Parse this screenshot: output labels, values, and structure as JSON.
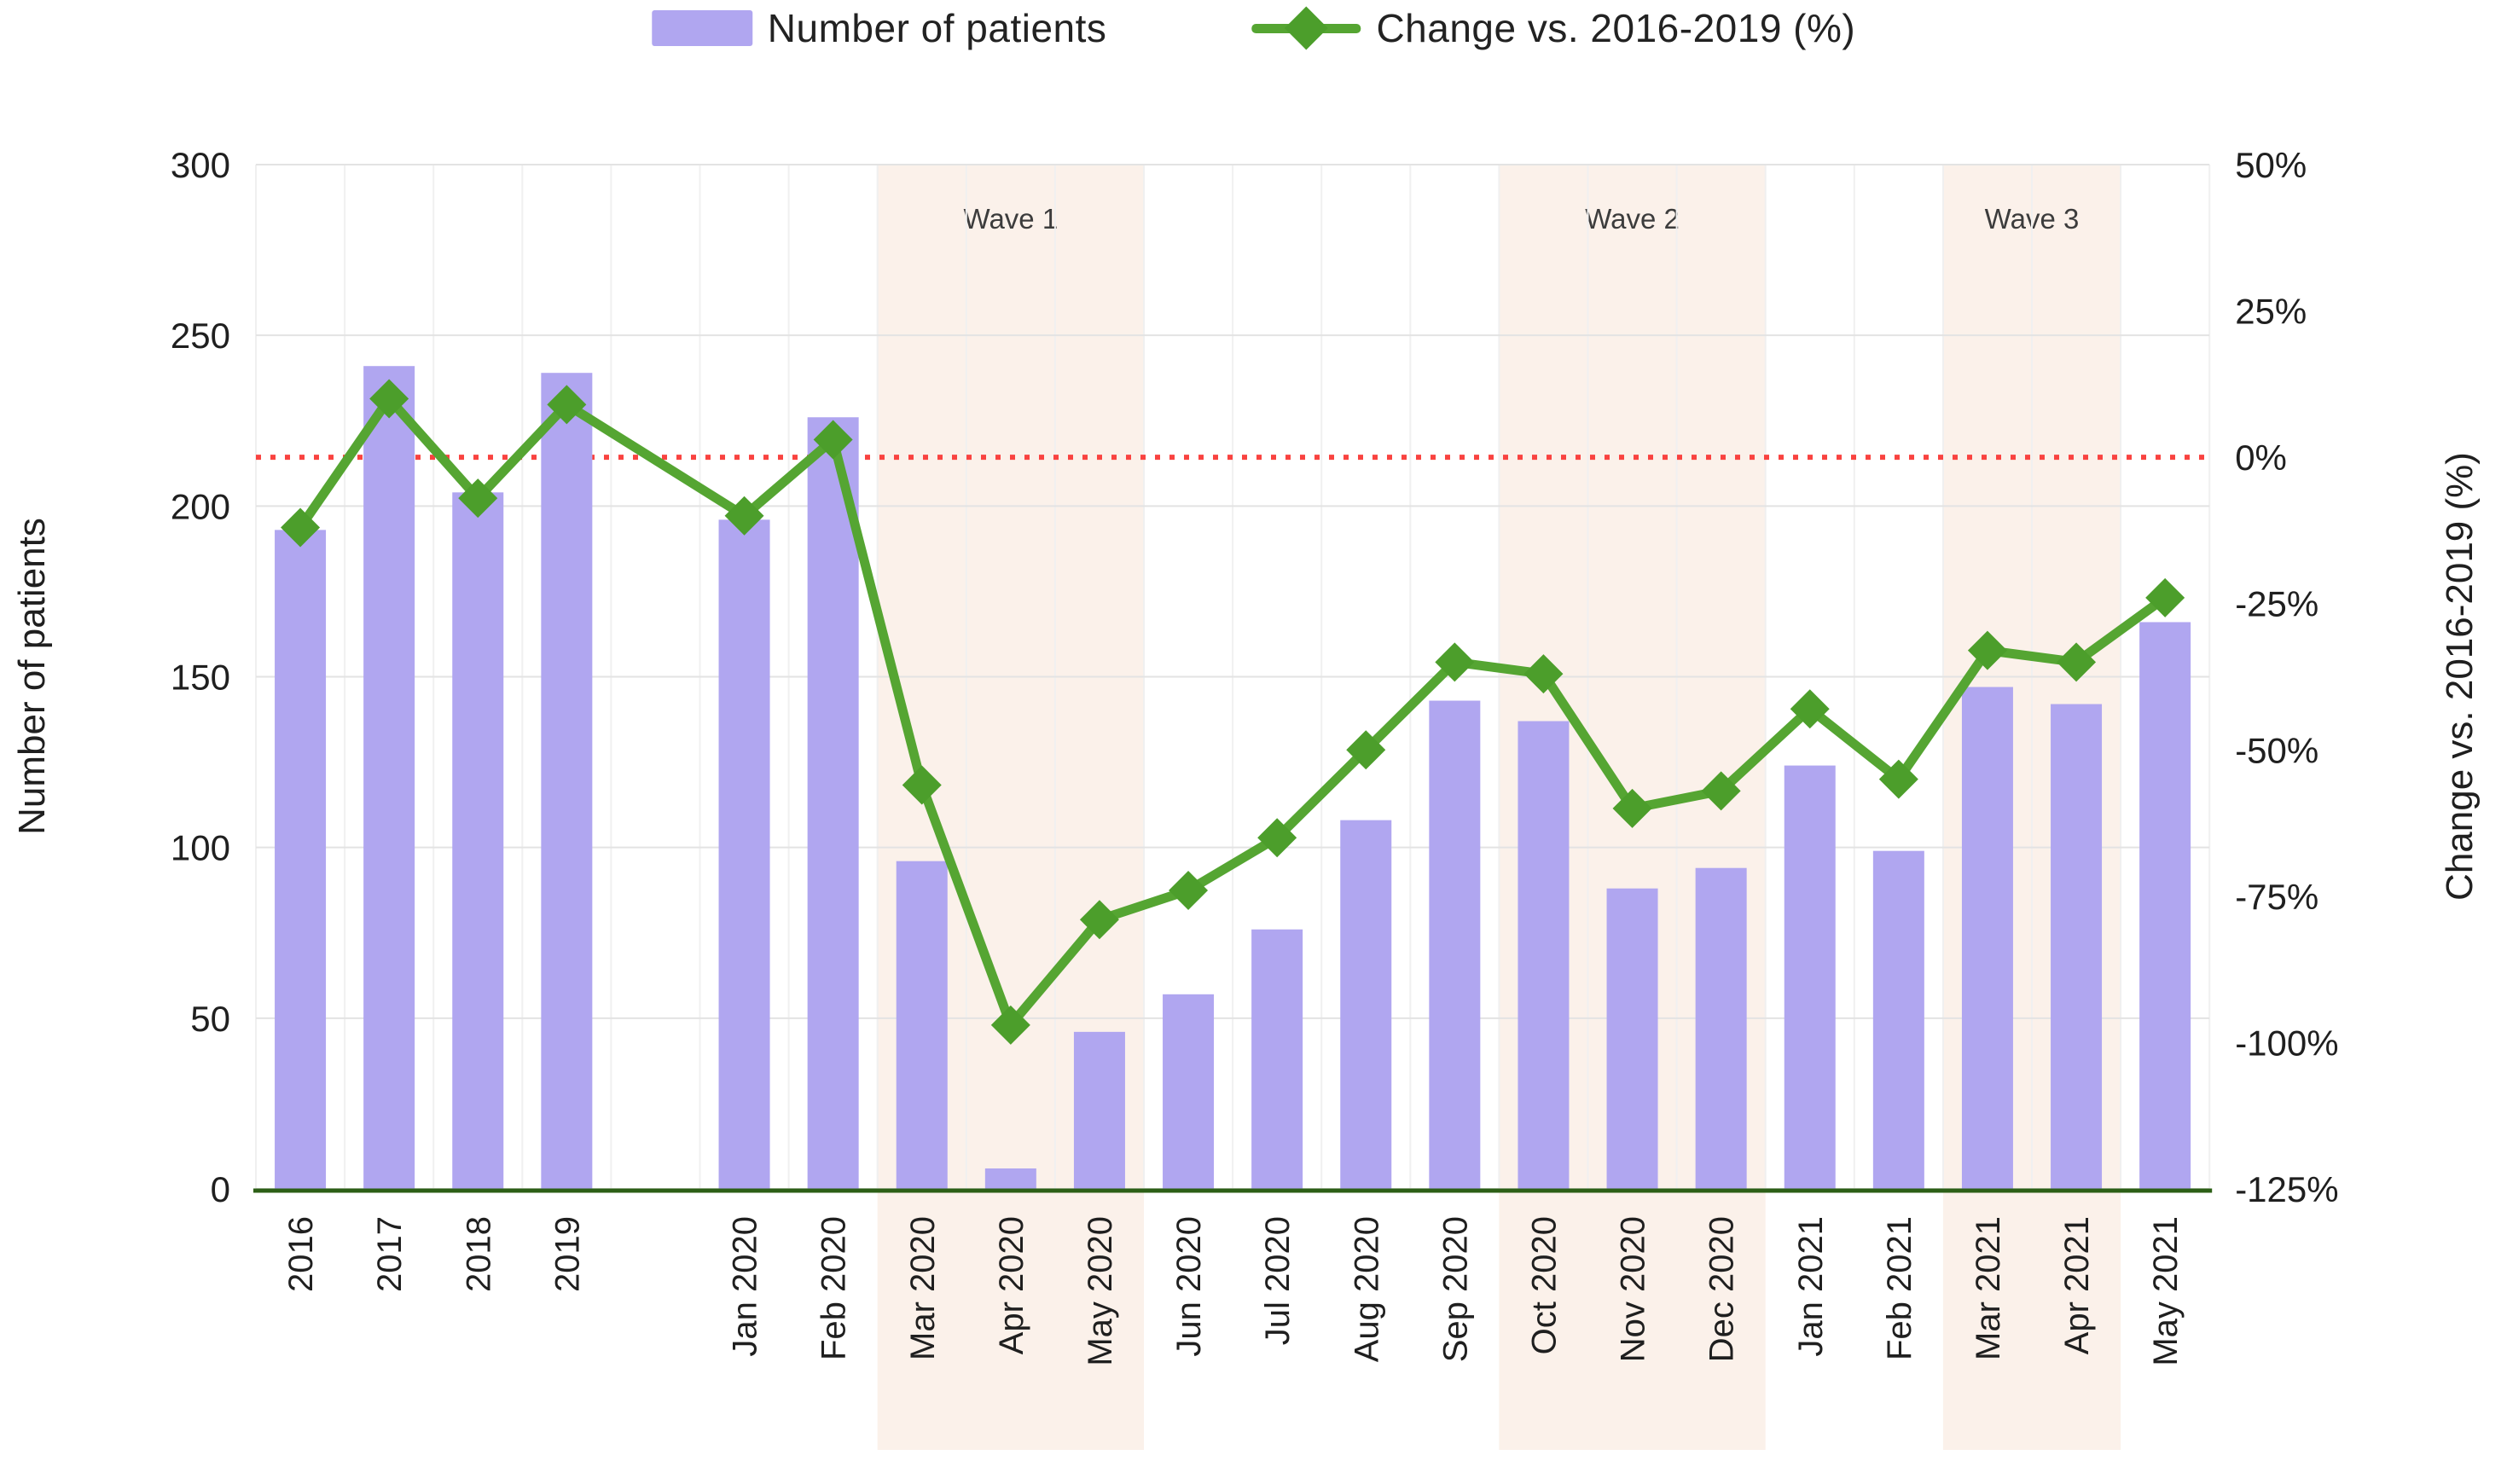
{
  "legend": {
    "bar_label": "Number of patients",
    "line_label": "Change vs. 2016-2019 (%)"
  },
  "colors": {
    "bar": "#b0a6f0",
    "line": "#55a532",
    "marker": "#4c9e2b",
    "band": "#fbf1ea",
    "grid": "#e3e3e3",
    "grid_vertical": "#f0f0f0",
    "reference": "#f94340",
    "axis_line": "#2c5f16",
    "tick_text": "#1f1f1f",
    "wave_text": "#3c3c3c"
  },
  "chart_data": {
    "type": "bar",
    "title": "",
    "categories": [
      "2016",
      "2017",
      "2018",
      "2019",
      "Jan 2020",
      "Feb 2020",
      "Mar 2020",
      "Apr 2020",
      "May 2020",
      "Jun 2020",
      "Jul 2020",
      "Aug 2020",
      "Sep 2020",
      "Oct 2020",
      "Nov 2020",
      "Dec 2020",
      "Jan 2021",
      "Feb 2021",
      "Mar 2021",
      "Apr 2021",
      "May 2021"
    ],
    "gap_after_category": "2019",
    "series": [
      {
        "name": "Number of patients",
        "type": "bar",
        "axis": "left",
        "values": [
          193,
          241,
          204,
          239,
          196,
          226,
          96,
          6,
          46,
          57,
          76,
          108,
          143,
          137,
          88,
          94,
          124,
          99,
          147,
          142,
          166
        ]
      },
      {
        "name": "Change vs. 2016-2019 (%)",
        "type": "line",
        "axis": "right",
        "values": [
          -12,
          10,
          -7,
          9,
          -10,
          3,
          -56,
          -97,
          -79,
          -74,
          -65,
          -50,
          -35,
          -37,
          -60,
          -57,
          -43,
          -55,
          -33,
          -35,
          -24
        ]
      }
    ],
    "left_axis": {
      "title": "Number of patients",
      "min": 0,
      "max": 300,
      "tick_step": 50,
      "ticks": [
        "300",
        "250",
        "200",
        "150",
        "100",
        "50",
        "0"
      ]
    },
    "right_axis": {
      "title": "Change vs. 2016-2019 (%)",
      "min": -125,
      "max": 50,
      "tick_step": 25,
      "ticks": [
        "50%",
        "25%",
        "0%",
        "-25%",
        "-50%",
        "-75%",
        "-100%",
        "-125%"
      ]
    },
    "reference_line": {
      "axis": "right",
      "value": 0,
      "style": "dotted"
    },
    "annotations": [
      {
        "label": "Wave 1",
        "from": "Mar 2020",
        "to": "May 2020"
      },
      {
        "label": "Wave 2",
        "from": "Oct 2020",
        "to": "Dec 2020"
      },
      {
        "label": "Wave 3",
        "from": "Mar 2021",
        "to": "Apr 2021"
      }
    ],
    "legend_position": "top",
    "grid": true
  }
}
